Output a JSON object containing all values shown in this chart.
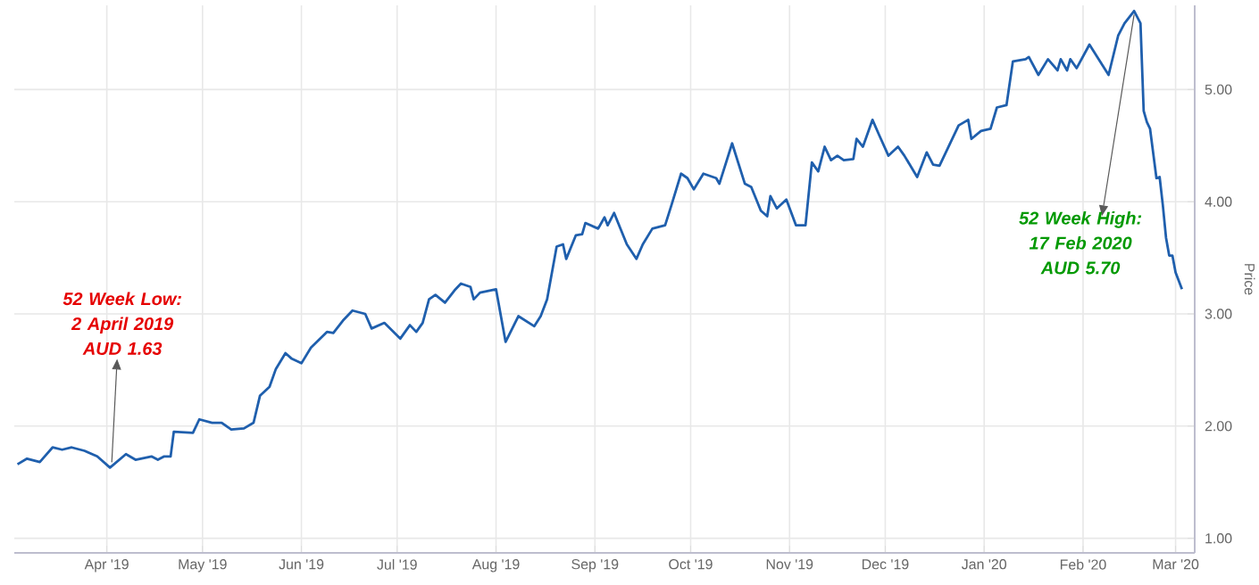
{
  "chart_data": {
    "type": "line",
    "ylabel": "Price",
    "x": [
      "2019-03-04",
      "2019-03-07",
      "2019-03-11",
      "2019-03-15",
      "2019-03-18",
      "2019-03-21",
      "2019-03-25",
      "2019-03-29",
      "2019-04-02",
      "2019-04-07",
      "2019-04-10",
      "2019-04-15",
      "2019-04-17",
      "2019-04-19",
      "2019-04-21",
      "2019-04-22",
      "2019-04-28",
      "2019-04-30",
      "2019-05-04",
      "2019-05-07",
      "2019-05-10",
      "2019-05-14",
      "2019-05-17",
      "2019-05-19",
      "2019-05-22",
      "2019-05-24",
      "2019-05-27",
      "2019-05-29",
      "2019-06-01",
      "2019-06-04",
      "2019-06-09",
      "2019-06-11",
      "2019-06-14",
      "2019-06-17",
      "2019-06-21",
      "2019-06-23",
      "2019-06-27",
      "2019-07-02",
      "2019-07-05",
      "2019-07-07",
      "2019-07-09",
      "2019-07-11",
      "2019-07-13",
      "2019-07-16",
      "2019-07-19",
      "2019-07-21",
      "2019-07-24",
      "2019-07-25",
      "2019-07-27",
      "2019-08-01",
      "2019-08-04",
      "2019-08-08",
      "2019-08-13",
      "2019-08-15",
      "2019-08-17",
      "2019-08-20",
      "2019-08-22",
      "2019-08-23",
      "2019-08-26",
      "2019-08-28",
      "2019-08-29",
      "2019-09-02",
      "2019-09-04",
      "2019-09-05",
      "2019-09-07",
      "2019-09-11",
      "2019-09-14",
      "2019-09-16",
      "2019-09-19",
      "2019-09-23",
      "2019-09-25",
      "2019-09-28",
      "2019-09-30",
      "2019-10-02",
      "2019-10-05",
      "2019-10-09",
      "2019-10-10",
      "2019-10-14",
      "2019-10-18",
      "2019-10-20",
      "2019-10-23",
      "2019-10-25",
      "2019-10-26",
      "2019-10-28",
      "2019-10-31",
      "2019-11-03",
      "2019-11-06",
      "2019-11-08",
      "2019-11-10",
      "2019-11-12",
      "2019-11-14",
      "2019-11-16",
      "2019-11-18",
      "2019-11-21",
      "2019-11-22",
      "2019-11-24",
      "2019-11-27",
      "2019-11-29",
      "2019-12-02",
      "2019-12-05",
      "2019-12-07",
      "2019-12-11",
      "2019-12-14",
      "2019-12-16",
      "2019-12-18",
      "2019-12-24",
      "2019-12-27",
      "2019-12-28",
      "2019-12-31",
      "2020-01-03",
      "2020-01-05",
      "2020-01-08",
      "2020-01-10",
      "2020-01-14",
      "2020-01-15",
      "2020-01-18",
      "2020-01-21",
      "2020-01-24",
      "2020-01-25",
      "2020-01-27",
      "2020-01-28",
      "2020-01-30",
      "2020-02-03",
      "2020-02-09",
      "2020-02-12",
      "2020-02-14",
      "2020-02-17",
      "2020-02-19",
      "2020-02-20",
      "2020-02-21",
      "2020-02-22",
      "2020-02-24",
      "2020-02-25",
      "2020-02-26",
      "2020-02-27",
      "2020-02-28",
      "2020-02-29",
      "2020-03-01",
      "2020-03-03"
    ],
    "series": [
      {
        "color": "#1f5fad",
        "values": [
          1.66,
          1.71,
          1.68,
          1.81,
          1.79,
          1.81,
          1.78,
          1.73,
          1.63,
          1.75,
          1.7,
          1.73,
          1.7,
          1.73,
          1.73,
          1.95,
          1.94,
          2.06,
          2.03,
          2.03,
          1.97,
          1.98,
          2.03,
          2.27,
          2.35,
          2.51,
          2.65,
          2.6,
          2.56,
          2.7,
          2.84,
          2.83,
          2.94,
          3.03,
          3.0,
          2.87,
          2.92,
          2.78,
          2.9,
          2.84,
          2.92,
          3.13,
          3.17,
          3.1,
          3.21,
          3.27,
          3.24,
          3.13,
          3.19,
          3.22,
          2.75,
          2.98,
          2.89,
          2.98,
          3.13,
          3.6,
          3.62,
          3.49,
          3.7,
          3.71,
          3.81,
          3.76,
          3.86,
          3.79,
          3.9,
          3.62,
          3.49,
          3.62,
          3.76,
          3.79,
          3.97,
          4.25,
          4.21,
          4.11,
          4.25,
          4.21,
          4.16,
          4.52,
          4.16,
          4.13,
          3.92,
          3.87,
          4.05,
          3.94,
          4.02,
          3.79,
          3.79,
          4.35,
          4.27,
          4.49,
          4.37,
          4.41,
          4.37,
          4.38,
          4.56,
          4.49,
          4.73,
          4.6,
          4.41,
          4.49,
          4.41,
          4.22,
          4.44,
          4.33,
          4.32,
          4.68,
          4.73,
          4.56,
          4.63,
          4.65,
          4.84,
          4.86,
          5.25,
          5.27,
          5.29,
          5.13,
          5.27,
          5.17,
          5.27,
          5.17,
          5.27,
          5.19,
          5.4,
          5.13,
          5.48,
          5.59,
          5.7,
          5.59,
          4.81,
          4.71,
          4.65,
          4.21,
          4.22,
          3.97,
          3.68,
          3.52,
          3.52,
          3.37,
          3.22
        ]
      }
    ],
    "xlim": [
      "2019-03-03",
      "2020-03-07"
    ],
    "xticks": [
      {
        "value": "2019-04-01",
        "label": "Apr '19"
      },
      {
        "value": "2019-05-01",
        "label": "May '19"
      },
      {
        "value": "2019-06-01",
        "label": "Jun '19"
      },
      {
        "value": "2019-07-01",
        "label": "Jul '19"
      },
      {
        "value": "2019-08-01",
        "label": "Aug '19"
      },
      {
        "value": "2019-09-01",
        "label": "Sep '19"
      },
      {
        "value": "2019-10-01",
        "label": "Oct '19"
      },
      {
        "value": "2019-11-01",
        "label": "Nov '19"
      },
      {
        "value": "2019-12-01",
        "label": "Dec '19"
      },
      {
        "value": "2020-01-01",
        "label": "Jan '20"
      },
      {
        "value": "2020-02-01",
        "label": "Feb '20"
      },
      {
        "value": "2020-03-01",
        "label": "Mar '20"
      }
    ],
    "ylim": [
      0.87,
      5.75
    ],
    "yticks": [
      {
        "value": 1,
        "label": "1.00"
      },
      {
        "value": 2,
        "label": "2.00"
      },
      {
        "value": 3,
        "label": "3.00"
      },
      {
        "value": 4,
        "label": "4.00"
      },
      {
        "value": 5,
        "label": "5.00"
      }
    ],
    "grid": true,
    "marker": "none",
    "line_style": "solid",
    "annotations": [
      {
        "text": "52 Week Low: 2 April 2019 AUD 1.63",
        "x": "2019-04-02",
        "y": 1.63
      },
      {
        "text": "52 Week High: 17 Feb 2020 AUD 5.70",
        "x": "2020-02-17",
        "y": 5.7
      }
    ]
  }
}
